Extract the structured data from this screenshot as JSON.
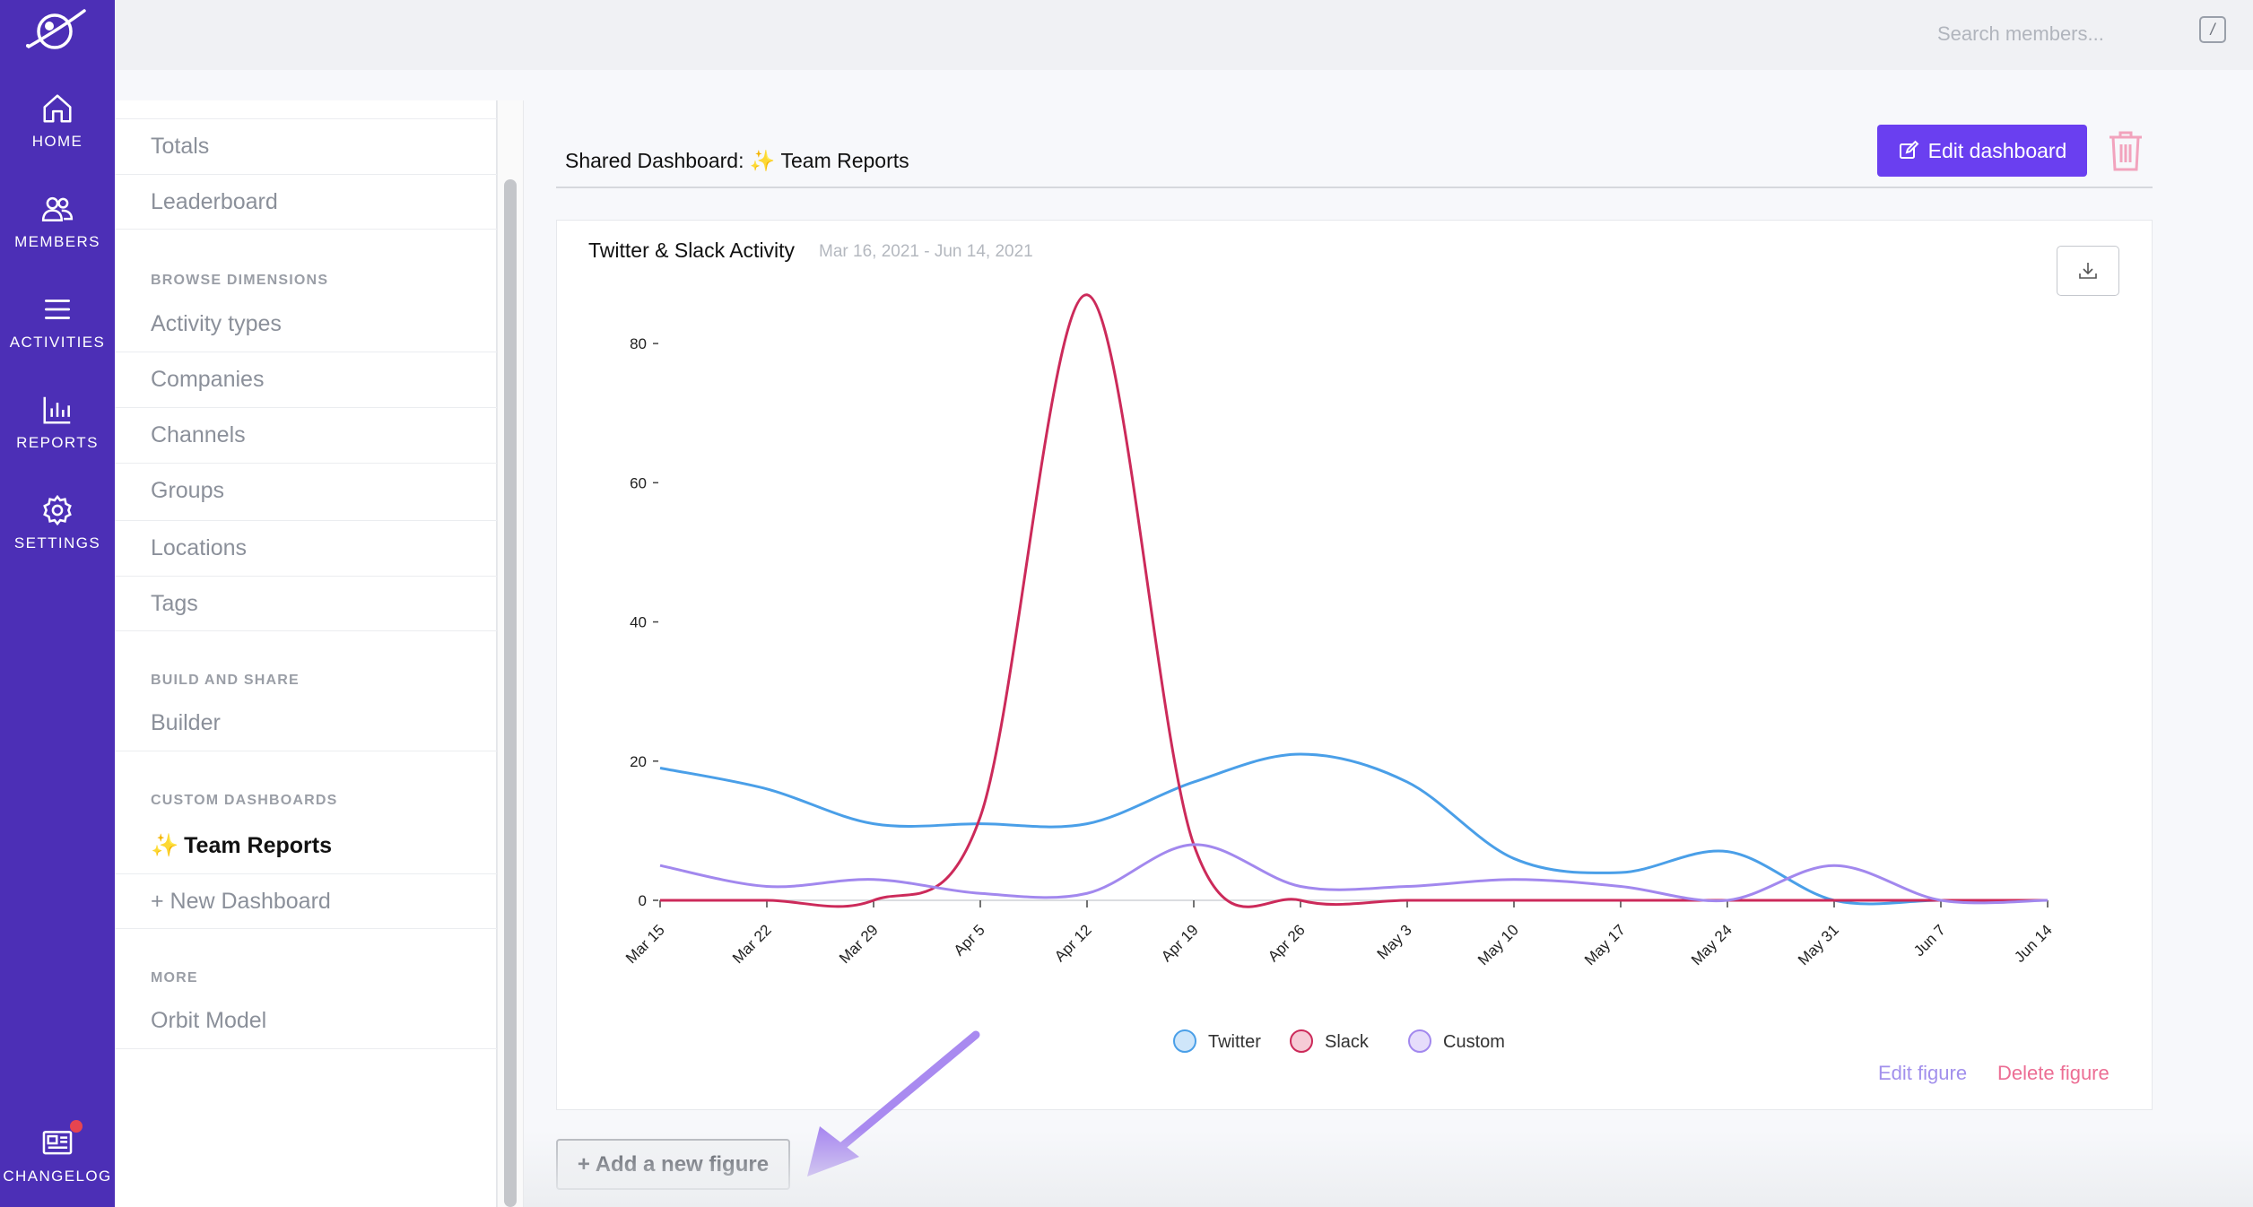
{
  "nav": {
    "items": [
      {
        "label": "HOME",
        "icon": "home-icon"
      },
      {
        "label": "MEMBERS",
        "icon": "members-icon"
      },
      {
        "label": "ACTIVITIES",
        "icon": "activities-icon"
      },
      {
        "label": "REPORTS",
        "icon": "reports-icon"
      },
      {
        "label": "SETTINGS",
        "icon": "settings-icon"
      }
    ],
    "changelog": {
      "label": "CHANGELOG",
      "icon": "newspaper-icon"
    }
  },
  "search": {
    "placeholder": "Search members...",
    "shortcut": "/"
  },
  "sidebar": {
    "reports": [
      "Totals",
      "Leaderboard"
    ],
    "browse_heading": "BROWSE DIMENSIONS",
    "browse": [
      "Activity types",
      "Companies",
      "Channels",
      "Groups",
      "Locations",
      "Tags"
    ],
    "build_heading": "BUILD AND SHARE",
    "build": [
      "Builder"
    ],
    "custom_heading": "CUSTOM DASHBOARDS",
    "custom_active": {
      "emoji": "✨",
      "label": "Team Reports"
    },
    "new_dashboard": "+ New Dashboard",
    "more_heading": "MORE",
    "more": [
      "Orbit Model"
    ]
  },
  "dashboard": {
    "title_prefix": "Shared Dashboard:",
    "emoji": "✨",
    "name": "Team Reports",
    "edit_label": "Edit dashboard"
  },
  "figure": {
    "title": "Twitter & Slack Activity",
    "date_range": "Mar 16, 2021 - Jun 14, 2021",
    "edit_label": "Edit figure",
    "delete_label": "Delete figure"
  },
  "add_figure_label": "+ Add a new figure",
  "chart_data": {
    "type": "line",
    "title": "Twitter & Slack Activity",
    "x": [
      "Mar 15",
      "Mar 22",
      "Mar 29",
      "Apr 5",
      "Apr 12",
      "Apr 19",
      "Apr 26",
      "May 3",
      "May 10",
      "May 17",
      "May 24",
      "May 31",
      "Jun 7",
      "Jun 14"
    ],
    "yticks": [
      0,
      20,
      40,
      60,
      80
    ],
    "ylim": [
      0,
      88
    ],
    "legend_position": "bottom",
    "series": [
      {
        "name": "Twitter",
        "color": "#4a9fe8",
        "fill": "#cfe6fa",
        "values": [
          19,
          16,
          11,
          11,
          11,
          17,
          21,
          17,
          6,
          4,
          7,
          0,
          0,
          0
        ]
      },
      {
        "name": "Slack",
        "color": "#cc2a5a",
        "fill": "#f6cbd6",
        "values": [
          0,
          0,
          0,
          12,
          87,
          8,
          0,
          0,
          0,
          0,
          0,
          0,
          0,
          0
        ]
      },
      {
        "name": "Custom",
        "color": "#a288ee",
        "fill": "#e6ddfb",
        "values": [
          5,
          2,
          3,
          1,
          1,
          8,
          2,
          2,
          3,
          2,
          0,
          5,
          0,
          0
        ]
      }
    ]
  },
  "colors": {
    "brand": "#4c2fb6",
    "accent": "#6a3ff0",
    "delete": "#ec6e94"
  }
}
